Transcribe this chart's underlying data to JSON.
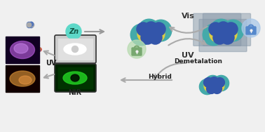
{
  "bg_color": "#f0f0f0",
  "labels": {
    "UV": "UV",
    "Vis": "Vis",
    "Demetalation": "Demetalation",
    "Hybrid": "Hybrid",
    "UV_label": "UV",
    "NIR": "NIR",
    "Zn": "Zn"
  },
  "colors": {
    "arrow_gray": "#aaaaaa",
    "zn_circle": "#5dd8c8",
    "lock_green_bg": "#b8dbb0",
    "lock_blue_bg": "#aac8e8",
    "lock_green": "#78a870",
    "lock_blue": "#5588cc",
    "molecule_gray": "#aaaaaa",
    "molecule_blue": "#3355aa",
    "molecule_yellow": "#ddcc44",
    "molecule_teal": "#44aaaa",
    "text_bold": "#222222"
  }
}
